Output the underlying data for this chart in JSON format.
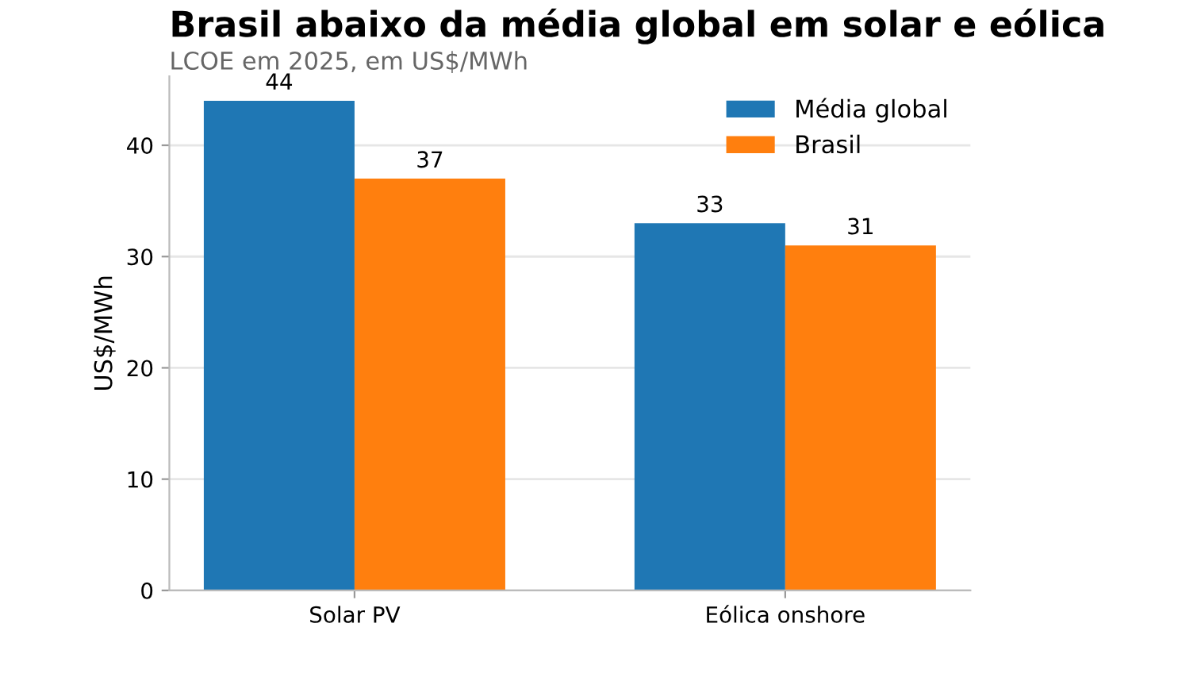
{
  "chart_data": {
    "type": "bar",
    "title": "Brasil abaixo da média global em solar e eólica",
    "subtitle": "LCOE em 2025, em US$/MWh",
    "ylabel": "US$/MWh",
    "categories": [
      "Solar PV",
      "Eólica onshore"
    ],
    "series": [
      {
        "name": "Média global",
        "color": "#1f77b4",
        "values": [
          44,
          33
        ]
      },
      {
        "name": "Brasil",
        "color": "#ff7f0e",
        "values": [
          37,
          31
        ]
      }
    ],
    "ylim": [
      0,
      46.2
    ],
    "yticks": [
      0,
      10,
      20,
      30,
      40
    ],
    "grid": "y",
    "legend": "top right",
    "data_labels": true
  }
}
